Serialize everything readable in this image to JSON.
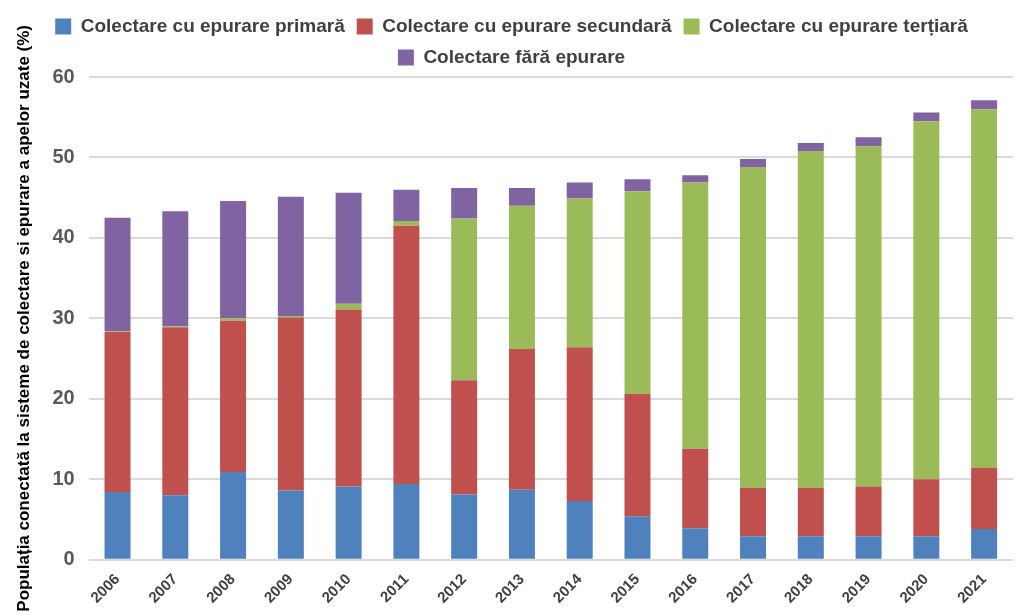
{
  "chart_data": {
    "type": "bar",
    "stacked": true,
    "ylabel": "Populația conectată la sisteme de colectare si epurare a apelor uzate (%)",
    "categories": [
      "2006",
      "2007",
      "2008",
      "2009",
      "2010",
      "2011",
      "2012",
      "2013",
      "2014",
      "2015",
      "2016",
      "2017",
      "2018",
      "2019",
      "2020",
      "2021"
    ],
    "series": [
      {
        "name": "Colectare cu epurare primară",
        "color": "#4f81bd",
        "values": [
          8.4,
          8.0,
          10.9,
          8.6,
          9.1,
          9.4,
          8.1,
          8.7,
          7.3,
          5.4,
          3.9,
          2.9,
          2.9,
          2.9,
          2.9,
          3.8
        ]
      },
      {
        "name": "Colectare cu epurare secundară",
        "color": "#c0504d",
        "values": [
          19.9,
          20.9,
          18.8,
          21.5,
          22.0,
          32.1,
          14.2,
          17.5,
          19.1,
          15.2,
          9.9,
          6.0,
          6.0,
          6.2,
          7.1,
          7.6
        ]
      },
      {
        "name": "Colectare cu epurare terțiară",
        "color": "#9bbb59",
        "values": [
          0.1,
          0.1,
          0.3,
          0.2,
          0.7,
          0.6,
          20.1,
          17.8,
          18.5,
          25.2,
          33.1,
          39.9,
          41.9,
          42.3,
          44.5,
          44.6
        ]
      },
      {
        "name": "Colectare fără epurare",
        "color": "#8064a2",
        "values": [
          14.1,
          14.3,
          14.6,
          14.8,
          13.8,
          3.9,
          3.8,
          2.2,
          2.0,
          1.5,
          0.9,
          1.0,
          1.0,
          1.1,
          1.1,
          1.1
        ]
      }
    ],
    "ylim": [
      0,
      60
    ],
    "yticks": [
      0,
      10,
      20,
      30,
      40,
      50,
      60
    ],
    "grid": "y",
    "legend": "top"
  }
}
